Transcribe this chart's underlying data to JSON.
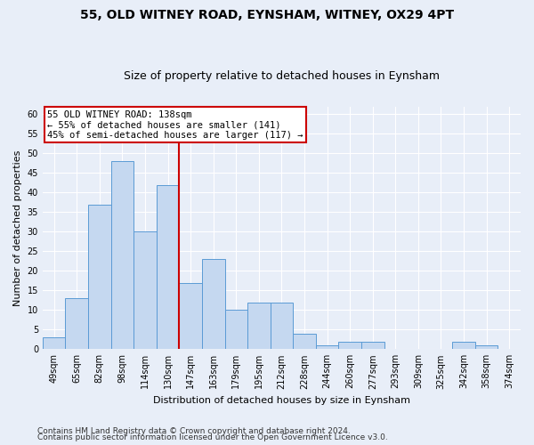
{
  "title": "55, OLD WITNEY ROAD, EYNSHAM, WITNEY, OX29 4PT",
  "subtitle": "Size of property relative to detached houses in Eynsham",
  "xlabel": "Distribution of detached houses by size in Eynsham",
  "ylabel": "Number of detached properties",
  "categories": [
    "49sqm",
    "65sqm",
    "82sqm",
    "98sqm",
    "114sqm",
    "130sqm",
    "147sqm",
    "163sqm",
    "179sqm",
    "195sqm",
    "212sqm",
    "228sqm",
    "244sqm",
    "260sqm",
    "277sqm",
    "293sqm",
    "309sqm",
    "325sqm",
    "342sqm",
    "358sqm",
    "374sqm"
  ],
  "values": [
    3,
    13,
    37,
    48,
    30,
    42,
    17,
    23,
    10,
    12,
    12,
    4,
    1,
    2,
    2,
    0,
    0,
    0,
    2,
    1,
    0
  ],
  "bar_color": "#c5d8f0",
  "bar_edge_color": "#5b9bd5",
  "vline_index": 6,
  "vline_color": "#cc0000",
  "annotation_text": "55 OLD WITNEY ROAD: 138sqm\n← 55% of detached houses are smaller (141)\n45% of semi-detached houses are larger (117) →",
  "annotation_box_facecolor": "#ffffff",
  "annotation_box_edgecolor": "#cc0000",
  "ylim": [
    0,
    62
  ],
  "yticks": [
    0,
    5,
    10,
    15,
    20,
    25,
    30,
    35,
    40,
    45,
    50,
    55,
    60
  ],
  "footer1": "Contains HM Land Registry data © Crown copyright and database right 2024.",
  "footer2": "Contains public sector information licensed under the Open Government Licence v3.0.",
  "bg_color": "#e8eef8",
  "plot_bg_color": "#e8eef8",
  "grid_color": "#ffffff",
  "title_fontsize": 10,
  "subtitle_fontsize": 9,
  "axis_label_fontsize": 8,
  "tick_fontsize": 7,
  "footer_fontsize": 6.5,
  "ann_fontsize": 7.5
}
